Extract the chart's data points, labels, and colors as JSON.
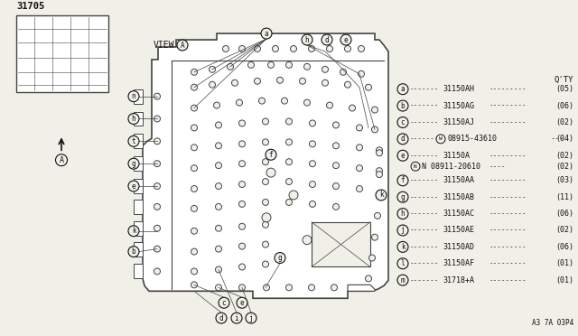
{
  "bg_color": "#f0efe8",
  "part_number_label": "31705",
  "view_label": "VIEW",
  "diagram_note": "A3 7A 03P4",
  "qty_header": "Q'TY",
  "parts_list": [
    {
      "label": "a",
      "part": "31150AH",
      "qty": "(05)"
    },
    {
      "label": "b",
      "part": "31150AG",
      "qty": "(06)"
    },
    {
      "label": "c",
      "part": "31150AJ",
      "qty": "(02)"
    },
    {
      "label": "d",
      "part": "W 08915-43610",
      "qty": "(04)",
      "special": true
    },
    {
      "label": "e",
      "part": "31150A",
      "qty": "(02)",
      "extra_part": "N 08911-20610",
      "extra_qty": "(02)"
    },
    {
      "label": "f",
      "part": "31150AA",
      "qty": "(03)"
    },
    {
      "label": "g",
      "part": "31150AB",
      "qty": "(11)"
    },
    {
      "label": "h",
      "part": "31150AC",
      "qty": "(06)"
    },
    {
      "label": "j",
      "part": "31150AE",
      "qty": "(02)"
    },
    {
      "label": "k",
      "part": "31150AD",
      "qty": "(06)"
    },
    {
      "label": "l",
      "part": "31150AF",
      "qty": "(01)"
    },
    {
      "label": "m",
      "part": "31718+A",
      "qty": "(01)"
    }
  ],
  "line_color": "#444444",
  "text_color": "#111111",
  "circle_color": "#111111"
}
